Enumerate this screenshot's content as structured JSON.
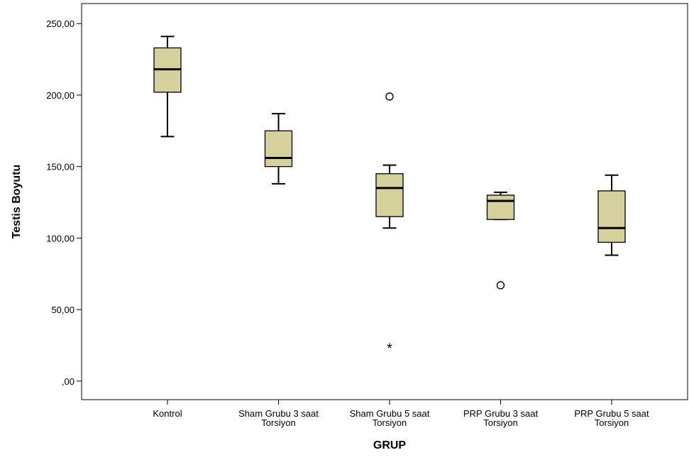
{
  "chart_data": {
    "type": "boxplot",
    "xlabel": "GRUP",
    "ylabel": "Testis Boyutu",
    "ylim": [
      -13,
      264
    ],
    "yticks": [
      {
        "value": 0,
        "label": ",00"
      },
      {
        "value": 50,
        "label": "50,00"
      },
      {
        "value": 100,
        "label": "100,00"
      },
      {
        "value": 150,
        "label": "150,00"
      },
      {
        "value": 200,
        "label": "200,00"
      },
      {
        "value": 250,
        "label": "250,00"
      }
    ],
    "colors": {
      "box_fill": "#d6d09c",
      "stroke": "#000000"
    },
    "categories": [
      {
        "label": [
          "Kontrol"
        ],
        "min": 171,
        "q1": 202,
        "median": 218,
        "q3": 233,
        "max": 241,
        "outliers": [],
        "extremes": []
      },
      {
        "label": [
          "Sham Grubu 3 saat",
          "Torsiyon"
        ],
        "min": 138,
        "q1": 150,
        "median": 156,
        "q3": 175,
        "max": 187,
        "outliers": [],
        "extremes": []
      },
      {
        "label": [
          "Sham Grubu 5 saat",
          "Torsiyon"
        ],
        "min": 107,
        "q1": 115,
        "median": 135,
        "q3": 145,
        "max": 151,
        "outliers": [
          199
        ],
        "extremes": [
          24
        ]
      },
      {
        "label": [
          "PRP Grubu 3 saat",
          "Torsiyon"
        ],
        "min": 113,
        "q1": 113,
        "median": 126,
        "q3": 130,
        "max": 132,
        "outliers": [
          67
        ],
        "extremes": []
      },
      {
        "label": [
          "PRP Grubu 5 saat",
          "Torsiyon"
        ],
        "min": 88,
        "q1": 97,
        "median": 107,
        "q3": 133,
        "max": 144,
        "outliers": [],
        "extremes": []
      }
    ]
  }
}
